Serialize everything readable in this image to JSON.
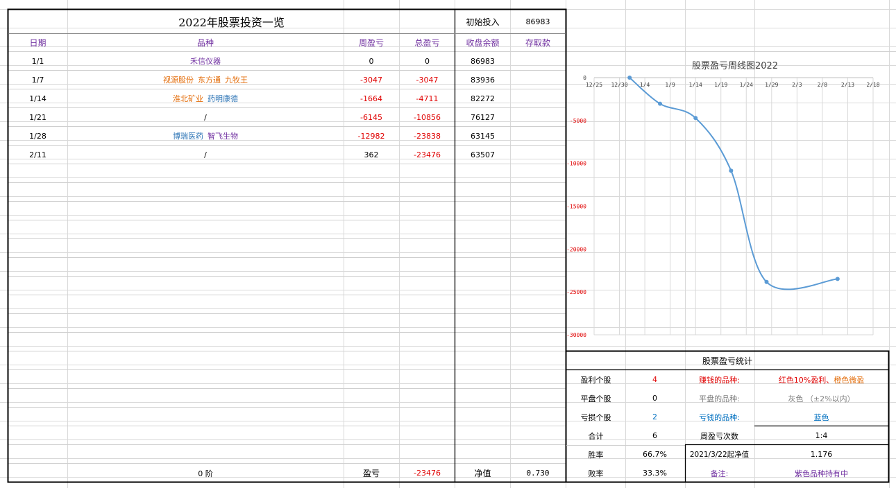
{
  "colors": {
    "purple": "#7030a0",
    "orange": "#e36c09",
    "blue": "#2e75b6",
    "red": "#e00000",
    "line": "#5b9bd5",
    "gray": "#7f7f7f"
  },
  "header": {
    "title": "2022年股票投资一览",
    "initial_label": "初始投入",
    "initial_value": "86983"
  },
  "columns": {
    "date": "日期",
    "stock": "品种",
    "week_pl": "周盈亏",
    "total_pl": "总盈亏",
    "balance": "收盘余额",
    "deposit": "存取款"
  },
  "rows": [
    {
      "date": "1/1",
      "stocks": [
        {
          "name": "禾信仪器",
          "color": "purple"
        }
      ],
      "week": "0",
      "total": "0",
      "balance": "86983",
      "week_color": "black",
      "total_color": "black"
    },
    {
      "date": "1/7",
      "stocks": [
        {
          "name": "视源股份",
          "color": "orange"
        },
        {
          "name": "东方通",
          "color": "orange"
        },
        {
          "name": "九牧王",
          "color": "orange"
        }
      ],
      "week": "-3047",
      "total": "-3047",
      "balance": "83936",
      "week_color": "red",
      "total_color": "red"
    },
    {
      "date": "1/14",
      "stocks": [
        {
          "name": "淮北矿业",
          "color": "orange"
        },
        {
          "name": "药明康德",
          "color": "blue"
        }
      ],
      "week": "-1664",
      "total": "-4711",
      "balance": "82272",
      "week_color": "red",
      "total_color": "red"
    },
    {
      "date": "1/21",
      "stocks": [
        {
          "name": "/",
          "color": "black"
        }
      ],
      "week": "-6145",
      "total": "-10856",
      "balance": "76127",
      "week_color": "red",
      "total_color": "red"
    },
    {
      "date": "1/28",
      "stocks": [
        {
          "name": "博瑞医药",
          "color": "blue"
        },
        {
          "name": "智飞生物",
          "color": "purple"
        }
      ],
      "week": "-12982",
      "total": "-23838",
      "balance": "63145",
      "week_color": "red",
      "total_color": "red"
    },
    {
      "date": "2/11",
      "stocks": [
        {
          "name": "/",
          "color": "black"
        }
      ],
      "week": "362",
      "total": "-23476",
      "balance": "63507",
      "week_color": "black",
      "total_color": "red"
    }
  ],
  "footer": {
    "stage": "0 阶",
    "pl_label": "盈亏",
    "pl_value": "-23476",
    "net_label": "净值",
    "net_value": "0.730"
  },
  "chart_data": {
    "type": "line",
    "title": "股票盈亏周线图2022",
    "x_ticks": [
      "12/25",
      "12/30",
      "1/4",
      "1/9",
      "1/14",
      "1/19",
      "1/24",
      "1/29",
      "2/3",
      "2/8",
      "2/13",
      "2/18"
    ],
    "y_ticks": [
      "0",
      "-5000",
      "-10000",
      "-15000",
      "-20000",
      "-25000",
      "-30000"
    ],
    "ylim": [
      -30000,
      0
    ],
    "xlim": [
      "2021-12-25",
      "2022-02-18"
    ],
    "grid": true,
    "smooth": true,
    "points": [
      {
        "x": "2022-01-01",
        "y": 0
      },
      {
        "x": "2022-01-07",
        "y": -3047
      },
      {
        "x": "2022-01-14",
        "y": -4711
      },
      {
        "x": "2022-01-21",
        "y": -10856
      },
      {
        "x": "2022-01-28",
        "y": -23838
      },
      {
        "x": "2022-02-11",
        "y": -23476
      }
    ]
  },
  "stats": {
    "title": "股票盈亏统计",
    "profit_label": "盈利个股",
    "profit_count": "4",
    "profit_kind_label": "赚钱的品种:",
    "profit_kind_red": "红色10%盈利",
    "profit_kind_sep": "、",
    "profit_kind_orange": "橙色微盈",
    "flat_label": "平盘个股",
    "flat_count": "0",
    "flat_kind_label": "平盘的品种:",
    "flat_kind_value": "灰色 （±2%以内）",
    "loss_label": "亏损个股",
    "loss_count": "2",
    "loss_kind_label": "亏钱的品种:",
    "loss_kind_value": "蓝色",
    "total_label": "合计",
    "total_count": "6",
    "weekly_label": "周盈亏次数",
    "weekly_value": "1:4",
    "win_label": "胜率",
    "win_value": "66.7%",
    "net_since_label": "2021/3/22起净值",
    "net_since_value": "1.176",
    "lose_label": "败率",
    "lose_value": "33.3%",
    "note_label": "备注:",
    "note_value": "紫色品种持有中"
  }
}
